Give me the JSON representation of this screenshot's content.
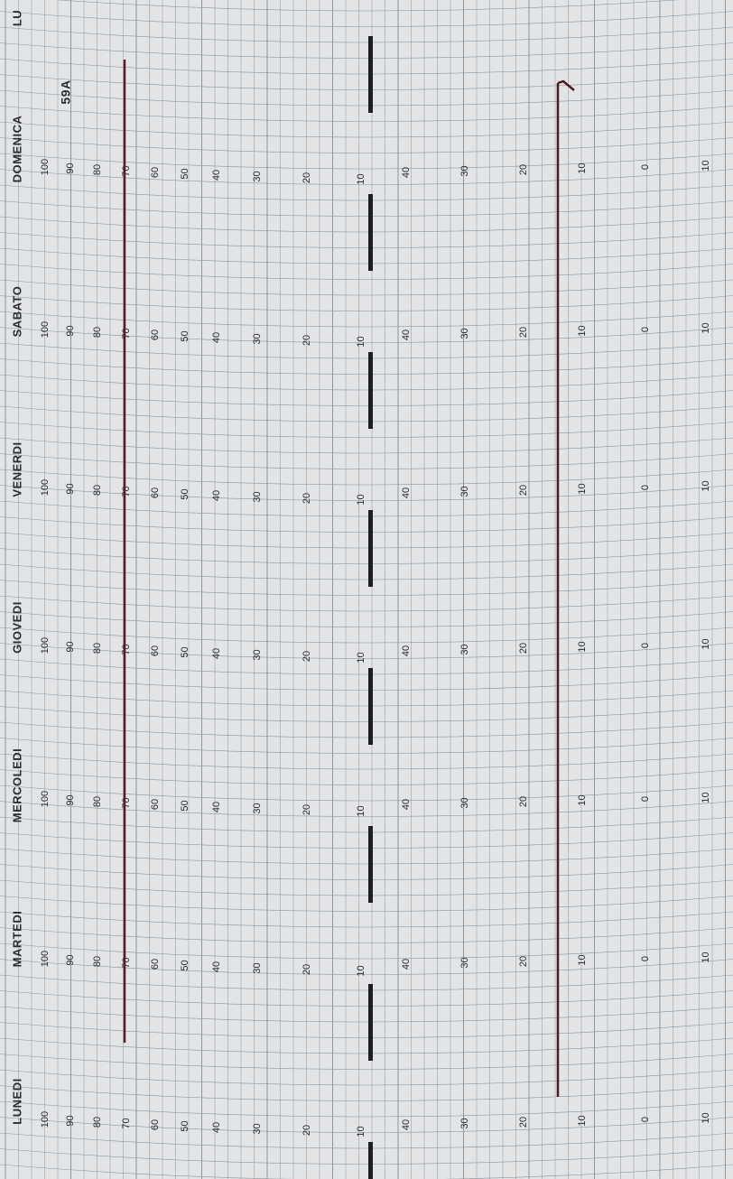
{
  "chart_id": "59A",
  "days": [
    "LU",
    "DOMENICA",
    "SABATO",
    "VENERDI",
    "GIOVEDI",
    "MERCOLEDI",
    "MARTEDI",
    "LUNEDI"
  ],
  "scale_left": [
    "100",
    "90",
    "80",
    "70",
    "60",
    "50",
    "40",
    "30",
    "20",
    "10"
  ],
  "scale_right": [
    "40",
    "30",
    "20",
    "10",
    "0",
    "10"
  ]
}
